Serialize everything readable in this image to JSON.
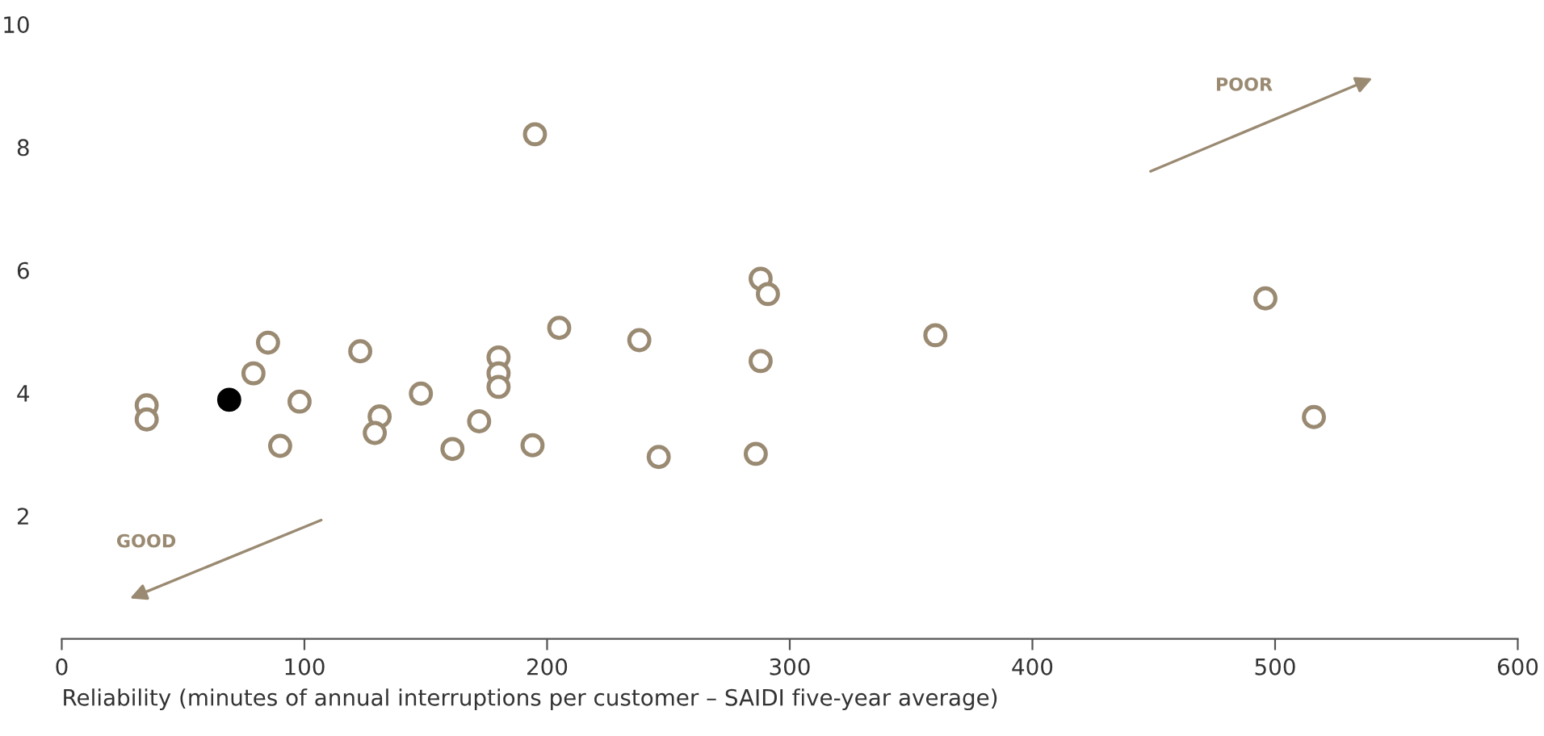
{
  "chart_data": {
    "type": "scatter",
    "xlabel": "Reliability (minutes of annual interruptions per customer – SAIDI five-year average)",
    "annotations": [
      "POOR",
      "GOOD"
    ],
    "xlim": [
      0,
      600
    ],
    "xticks": [
      0,
      100,
      200,
      300,
      400,
      500,
      600
    ],
    "ylim": [
      0,
      10
    ],
    "yticks": [
      2,
      4,
      6,
      8,
      10
    ],
    "grid": false,
    "marker": "circle",
    "series": [
      {
        "color": "#9a8a72",
        "x": [
          35,
          35,
          85,
          79,
          98,
          90,
          123,
          148,
          131,
          129,
          161,
          172,
          180,
          180,
          180,
          194,
          195,
          205,
          238,
          246,
          286,
          288,
          288,
          291,
          360,
          496,
          516
        ],
        "values": [
          3.8,
          3.57,
          4.82,
          4.32,
          3.86,
          3.14,
          4.68,
          3.99,
          3.62,
          3.35,
          3.09,
          3.54,
          4.58,
          4.32,
          4.1,
          3.15,
          8.21,
          5.06,
          4.86,
          2.96,
          3.01,
          4.52,
          5.86,
          5.61,
          4.94,
          5.54,
          3.61
        ]
      },
      {
        "color": "#000000",
        "x": [
          69
        ],
        "values": [
          3.89
        ]
      }
    ]
  }
}
